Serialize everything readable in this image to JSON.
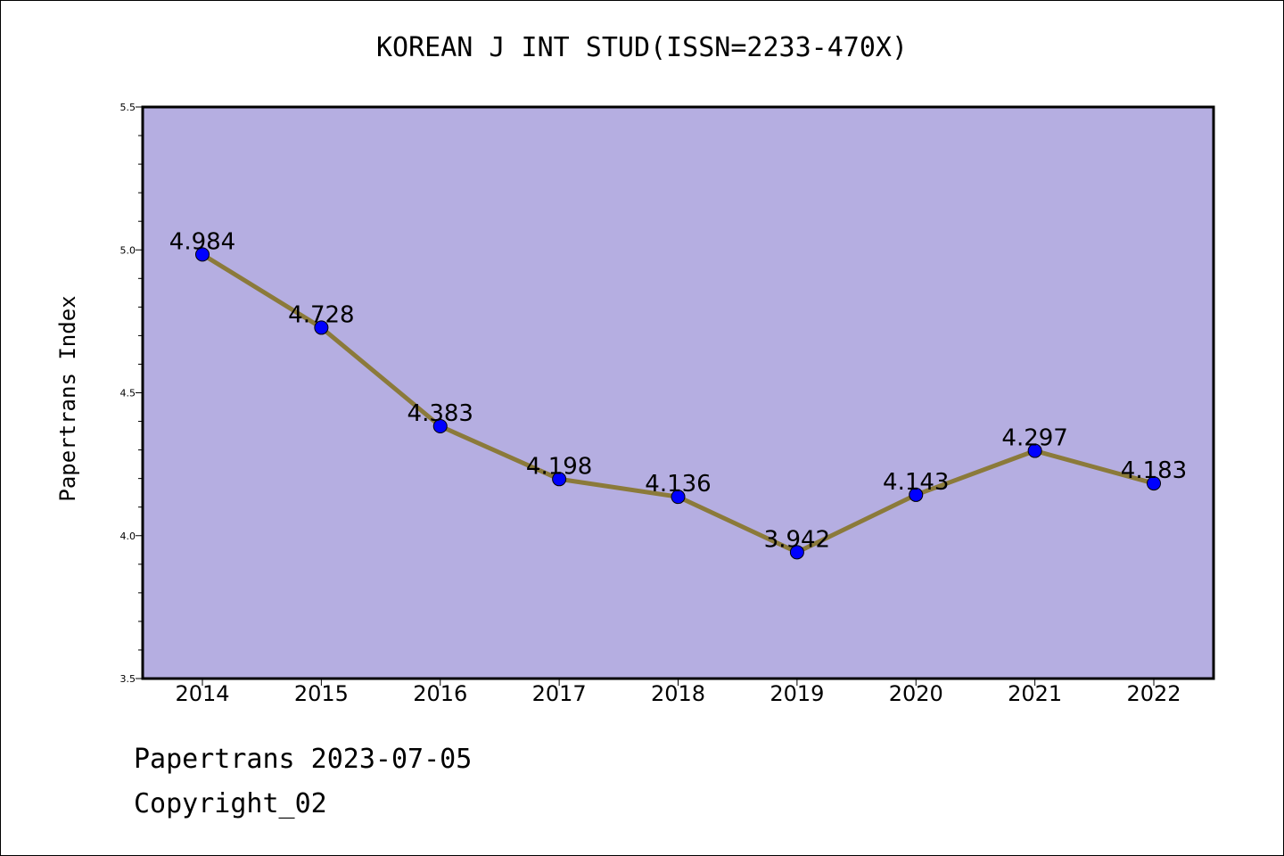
{
  "chart_data": {
    "type": "line",
    "title": "KOREAN J INT STUD(ISSN=2233-470X)",
    "ylabel": "Papertrans Index",
    "xlabel": "",
    "categories": [
      "2014",
      "2015",
      "2016",
      "2017",
      "2018",
      "2019",
      "2020",
      "2021",
      "2022"
    ],
    "values": [
      4.984,
      4.728,
      4.383,
      4.198,
      4.136,
      3.942,
      4.143,
      4.297,
      4.183
    ],
    "data_labels": [
      "4.984",
      "4.728",
      "4.383",
      "4.198",
      "4.136",
      "3.942",
      "4.143",
      "4.297",
      "4.183"
    ],
    "ylim": [
      3.5,
      5.5
    ],
    "yticks": [
      "3.5",
      "4.0",
      "4.5",
      "5.0",
      "5.5"
    ],
    "grid": false,
    "legend": "none",
    "colors": {
      "plot_background": "#b5aee1",
      "line": "#8b7a3a",
      "marker": "#0000ff"
    }
  },
  "footer": {
    "line1": "Papertrans 2023-07-05",
    "line2": "Copyright_02"
  }
}
